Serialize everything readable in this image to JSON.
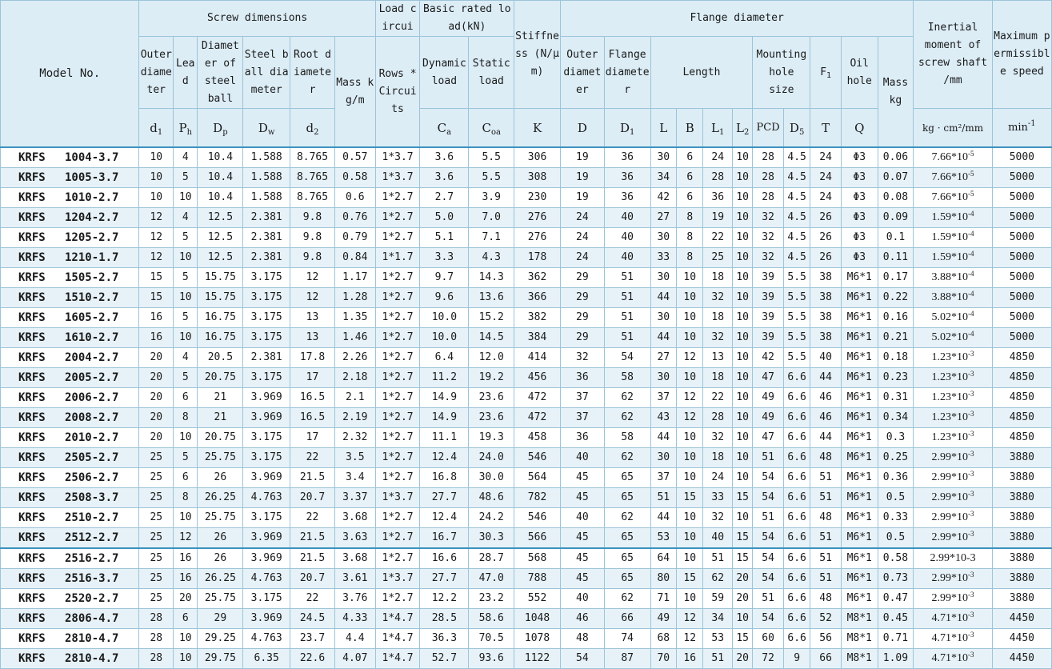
{
  "header": {
    "model": "Model No.",
    "screw_dimensions": "Screw dimensions",
    "load_circuit": "Load circui",
    "basic_rated_load": "Basic rated load(kN)",
    "stiffness": "Stiffness (N/μm)",
    "flange_diameter": "Flange diameter",
    "inertial_moment": "Inertial moment of screw shaft /mm",
    "max_speed": "Maximum permissible speed",
    "outer_diameter": "Outer diameter",
    "lead": "Lead",
    "diameter_steel_ball": "Diameter of steel ball",
    "steel_ball_diameter": "Steel ball diameter",
    "root_diameter": "Root diameter",
    "mass_kg_m": "Mass kg/m",
    "rows_circuits": "Rows * Circuits",
    "dynamic_load": "Dynamic load",
    "static_load": "Static load",
    "flange_outer_diameter": "Outer diameter",
    "flange_diameter_sub": "Flange diameter",
    "length": "Length",
    "mounting_hole_size": "Mounting hole size",
    "f1_base": "F",
    "f1_sub": "1",
    "oil_hole": "Oil hole",
    "mass_kg": "Mass kg",
    "sym_d1_base": "d",
    "sym_d1_sub": "1",
    "sym_ph_base": "P",
    "sym_ph_sub": "h",
    "sym_dp_base": "D",
    "sym_dp_sub": "p",
    "sym_dw_base": "D",
    "sym_dw_sub": "w",
    "sym_d2_base": "d",
    "sym_d2_sub": "2",
    "sym_ca_base": "C",
    "sym_ca_sub": "a",
    "sym_coa_base": "C",
    "sym_coa_sub": "oa",
    "sym_k": "K",
    "sym_D": "D",
    "sym_D1_base": "D",
    "sym_D1_sub": "1",
    "sym_L": "L",
    "sym_B": "B",
    "sym_L1_base": "L",
    "sym_L1_sub": "1",
    "sym_L2_base": "L",
    "sym_L2_sub": "2",
    "sym_pcd": "PCD",
    "sym_D5_base": "D",
    "sym_D5_sub": "5",
    "sym_T": "T",
    "sym_Q": "Q",
    "unit_inertia": "kg · cm²/mm",
    "unit_speed_base": "min",
    "unit_speed_sup": "-1"
  },
  "rows": [
    {
      "series": "KRFS",
      "model": "1004-3.7",
      "d1": "10",
      "ph": "4",
      "dp": "10.4",
      "dw": "1.588",
      "d2": "8.765",
      "mass_m": "0.57",
      "rc": "1*3.7",
      "ca": "3.6",
      "coa": "5.5",
      "k": "306",
      "D": "19",
      "D1": "36",
      "L": "30",
      "B": "6",
      "L1": "24",
      "L2": "10",
      "pcd": "28",
      "D5": "4.5",
      "T": "24",
      "Q": "Φ3",
      "mass": "0.06",
      "inertia_base": "7.66*10",
      "inertia_exp": "-5",
      "speed": "5000"
    },
    {
      "series": "KRFS",
      "model": "1005-3.7",
      "d1": "10",
      "ph": "5",
      "dp": "10.4",
      "dw": "1.588",
      "d2": "8.765",
      "mass_m": "0.58",
      "rc": "1*3.7",
      "ca": "3.6",
      "coa": "5.5",
      "k": "308",
      "D": "19",
      "D1": "36",
      "L": "34",
      "B": "6",
      "L1": "28",
      "L2": "10",
      "pcd": "28",
      "D5": "4.5",
      "T": "24",
      "Q": "Φ3",
      "mass": "0.07",
      "inertia_base": "7.66*10",
      "inertia_exp": "-5",
      "speed": "5000"
    },
    {
      "series": "KRFS",
      "model": "1010-2.7",
      "d1": "10",
      "ph": "10",
      "dp": "10.4",
      "dw": "1.588",
      "d2": "8.765",
      "mass_m": "0.6",
      "rc": "1*2.7",
      "ca": "2.7",
      "coa": "3.9",
      "k": "230",
      "D": "19",
      "D1": "36",
      "L": "42",
      "B": "6",
      "L1": "36",
      "L2": "10",
      "pcd": "28",
      "D5": "4.5",
      "T": "24",
      "Q": "Φ3",
      "mass": "0.08",
      "inertia_base": "7.66*10",
      "inertia_exp": "-5",
      "speed": "5000"
    },
    {
      "series": "KRFS",
      "model": "1204-2.7",
      "d1": "12",
      "ph": "4",
      "dp": "12.5",
      "dw": "2.381",
      "d2": "9.8",
      "mass_m": "0.76",
      "rc": "1*2.7",
      "ca": "5.0",
      "coa": "7.0",
      "k": "276",
      "D": "24",
      "D1": "40",
      "L": "27",
      "B": "8",
      "L1": "19",
      "L2": "10",
      "pcd": "32",
      "D5": "4.5",
      "T": "26",
      "Q": "Φ3",
      "mass": "0.09",
      "inertia_base": "1.59*10",
      "inertia_exp": "-4",
      "speed": "5000"
    },
    {
      "series": "KRFS",
      "model": "1205-2.7",
      "d1": "12",
      "ph": "5",
      "dp": "12.5",
      "dw": "2.381",
      "d2": "9.8",
      "mass_m": "0.79",
      "rc": "1*2.7",
      "ca": "5.1",
      "coa": "7.1",
      "k": "276",
      "D": "24",
      "D1": "40",
      "L": "30",
      "B": "8",
      "L1": "22",
      "L2": "10",
      "pcd": "32",
      "D5": "4.5",
      "T": "26",
      "Q": "Φ3",
      "mass": "0.1",
      "inertia_base": "1.59*10",
      "inertia_exp": "-4",
      "speed": "5000"
    },
    {
      "series": "KRFS",
      "model": "1210-1.7",
      "d1": "12",
      "ph": "10",
      "dp": "12.5",
      "dw": "2.381",
      "d2": "9.8",
      "mass_m": "0.84",
      "rc": "1*1.7",
      "ca": "3.3",
      "coa": "4.3",
      "k": "178",
      "D": "24",
      "D1": "40",
      "L": "33",
      "B": "8",
      "L1": "25",
      "L2": "10",
      "pcd": "32",
      "D5": "4.5",
      "T": "26",
      "Q": "Φ3",
      "mass": "0.11",
      "inertia_base": "1.59*10",
      "inertia_exp": "-4",
      "speed": "5000"
    },
    {
      "series": "KRFS",
      "model": "1505-2.7",
      "d1": "15",
      "ph": "5",
      "dp": "15.75",
      "dw": "3.175",
      "d2": "12",
      "mass_m": "1.17",
      "rc": "1*2.7",
      "ca": "9.7",
      "coa": "14.3",
      "k": "362",
      "D": "29",
      "D1": "51",
      "L": "30",
      "B": "10",
      "L1": "18",
      "L2": "10",
      "pcd": "39",
      "D5": "5.5",
      "T": "38",
      "Q": "M6*1",
      "mass": "0.17",
      "inertia_base": "3.88*10",
      "inertia_exp": "-4",
      "speed": "5000"
    },
    {
      "series": "KRFS",
      "model": "1510-2.7",
      "d1": "15",
      "ph": "10",
      "dp": "15.75",
      "dw": "3.175",
      "d2": "12",
      "mass_m": "1.28",
      "rc": "1*2.7",
      "ca": "9.6",
      "coa": "13.6",
      "k": "366",
      "D": "29",
      "D1": "51",
      "L": "44",
      "B": "10",
      "L1": "32",
      "L2": "10",
      "pcd": "39",
      "D5": "5.5",
      "T": "38",
      "Q": "M6*1",
      "mass": "0.22",
      "inertia_base": "3.88*10",
      "inertia_exp": "-4",
      "speed": "5000"
    },
    {
      "series": "KRFS",
      "model": "1605-2.7",
      "d1": "16",
      "ph": "5",
      "dp": "16.75",
      "dw": "3.175",
      "d2": "13",
      "mass_m": "1.35",
      "rc": "1*2.7",
      "ca": "10.0",
      "coa": "15.2",
      "k": "382",
      "D": "29",
      "D1": "51",
      "L": "30",
      "B": "10",
      "L1": "18",
      "L2": "10",
      "pcd": "39",
      "D5": "5.5",
      "T": "38",
      "Q": "M6*1",
      "mass": "0.16",
      "inertia_base": "5.02*10",
      "inertia_exp": "-4",
      "speed": "5000"
    },
    {
      "series": "KRFS",
      "model": "1610-2.7",
      "d1": "16",
      "ph": "10",
      "dp": "16.75",
      "dw": "3.175",
      "d2": "13",
      "mass_m": "1.46",
      "rc": "1*2.7",
      "ca": "10.0",
      "coa": "14.5",
      "k": "384",
      "D": "29",
      "D1": "51",
      "L": "44",
      "B": "10",
      "L1": "32",
      "L2": "10",
      "pcd": "39",
      "D5": "5.5",
      "T": "38",
      "Q": "M6*1",
      "mass": "0.21",
      "inertia_base": "5.02*10",
      "inertia_exp": "-4",
      "speed": "5000"
    },
    {
      "series": "KRFS",
      "model": "2004-2.7",
      "d1": "20",
      "ph": "4",
      "dp": "20.5",
      "dw": "2.381",
      "d2": "17.8",
      "mass_m": "2.26",
      "rc": "1*2.7",
      "ca": "6.4",
      "coa": "12.0",
      "k": "414",
      "D": "32",
      "D1": "54",
      "L": "27",
      "B": "12",
      "L1": "13",
      "L2": "10",
      "pcd": "42",
      "D5": "5.5",
      "T": "40",
      "Q": "M6*1",
      "mass": "0.18",
      "inertia_base": "1.23*10",
      "inertia_exp": "-3",
      "speed": "4850"
    },
    {
      "series": "KRFS",
      "model": "2005-2.7",
      "d1": "20",
      "ph": "5",
      "dp": "20.75",
      "dw": "3.175",
      "d2": "17",
      "mass_m": "2.18",
      "rc": "1*2.7",
      "ca": "11.2",
      "coa": "19.2",
      "k": "456",
      "D": "36",
      "D1": "58",
      "L": "30",
      "B": "10",
      "L1": "18",
      "L2": "10",
      "pcd": "47",
      "D5": "6.6",
      "T": "44",
      "Q": "M6*1",
      "mass": "0.23",
      "inertia_base": "1.23*10",
      "inertia_exp": "-3",
      "speed": "4850"
    },
    {
      "series": "KRFS",
      "model": "2006-2.7",
      "d1": "20",
      "ph": "6",
      "dp": "21",
      "dw": "3.969",
      "d2": "16.5",
      "mass_m": "2.1",
      "rc": "1*2.7",
      "ca": "14.9",
      "coa": "23.6",
      "k": "472",
      "D": "37",
      "D1": "62",
      "L": "37",
      "B": "12",
      "L1": "22",
      "L2": "10",
      "pcd": "49",
      "D5": "6.6",
      "T": "46",
      "Q": "M6*1",
      "mass": "0.31",
      "inertia_base": "1.23*10",
      "inertia_exp": "-3",
      "speed": "4850"
    },
    {
      "series": "KRFS",
      "model": "2008-2.7",
      "d1": "20",
      "ph": "8",
      "dp": "21",
      "dw": "3.969",
      "d2": "16.5",
      "mass_m": "2.19",
      "rc": "1*2.7",
      "ca": "14.9",
      "coa": "23.6",
      "k": "472",
      "D": "37",
      "D1": "62",
      "L": "43",
      "B": "12",
      "L1": "28",
      "L2": "10",
      "pcd": "49",
      "D5": "6.6",
      "T": "46",
      "Q": "M6*1",
      "mass": "0.34",
      "inertia_base": "1.23*10",
      "inertia_exp": "-3",
      "speed": "4850"
    },
    {
      "series": "KRFS",
      "model": "2010-2.7",
      "d1": "20",
      "ph": "10",
      "dp": "20.75",
      "dw": "3.175",
      "d2": "17",
      "mass_m": "2.32",
      "rc": "1*2.7",
      "ca": "11.1",
      "coa": "19.3",
      "k": "458",
      "D": "36",
      "D1": "58",
      "L": "44",
      "B": "10",
      "L1": "32",
      "L2": "10",
      "pcd": "47",
      "D5": "6.6",
      "T": "44",
      "Q": "M6*1",
      "mass": "0.3",
      "inertia_base": "1.23*10",
      "inertia_exp": "-3",
      "speed": "4850"
    },
    {
      "series": "KRFS",
      "model": "2505-2.7",
      "d1": "25",
      "ph": "5",
      "dp": "25.75",
      "dw": "3.175",
      "d2": "22",
      "mass_m": "3.5",
      "rc": "1*2.7",
      "ca": "12.4",
      "coa": "24.0",
      "k": "546",
      "D": "40",
      "D1": "62",
      "L": "30",
      "B": "10",
      "L1": "18",
      "L2": "10",
      "pcd": "51",
      "D5": "6.6",
      "T": "48",
      "Q": "M6*1",
      "mass": "0.25",
      "inertia_base": "2.99*10",
      "inertia_exp": "-3",
      "speed": "3880"
    },
    {
      "series": "KRFS",
      "model": "2506-2.7",
      "d1": "25",
      "ph": "6",
      "dp": "26",
      "dw": "3.969",
      "d2": "21.5",
      "mass_m": "3.4",
      "rc": "1*2.7",
      "ca": "16.8",
      "coa": "30.0",
      "k": "564",
      "D": "45",
      "D1": "65",
      "L": "37",
      "B": "10",
      "L1": "24",
      "L2": "10",
      "pcd": "54",
      "D5": "6.6",
      "T": "51",
      "Q": "M6*1",
      "mass": "0.36",
      "inertia_base": "2.99*10",
      "inertia_exp": "-3",
      "speed": "3880"
    },
    {
      "series": "KRFS",
      "model": "2508-3.7",
      "d1": "25",
      "ph": "8",
      "dp": "26.25",
      "dw": "4.763",
      "d2": "20.7",
      "mass_m": "3.37",
      "rc": "1*3.7",
      "ca": "27.7",
      "coa": "48.6",
      "k": "782",
      "D": "45",
      "D1": "65",
      "L": "51",
      "B": "15",
      "L1": "33",
      "L2": "15",
      "pcd": "54",
      "D5": "6.6",
      "T": "51",
      "Q": "M6*1",
      "mass": "0.5",
      "inertia_base": "2.99*10",
      "inertia_exp": "-3",
      "speed": "3880"
    },
    {
      "series": "KRFS",
      "model": "2510-2.7",
      "d1": "25",
      "ph": "10",
      "dp": "25.75",
      "dw": "3.175",
      "d2": "22",
      "mass_m": "3.68",
      "rc": "1*2.7",
      "ca": "12.4",
      "coa": "24.2",
      "k": "546",
      "D": "40",
      "D1": "62",
      "L": "44",
      "B": "10",
      "L1": "32",
      "L2": "10",
      "pcd": "51",
      "D5": "6.6",
      "T": "48",
      "Q": "M6*1",
      "mass": "0.33",
      "inertia_base": "2.99*10",
      "inertia_exp": "-3",
      "speed": "3880"
    },
    {
      "series": "KRFS",
      "model": "2512-2.7",
      "d1": "25",
      "ph": "12",
      "dp": "26",
      "dw": "3.969",
      "d2": "21.5",
      "mass_m": "3.63",
      "rc": "1*2.7",
      "ca": "16.7",
      "coa": "30.3",
      "k": "566",
      "D": "45",
      "D1": "65",
      "L": "53",
      "B": "10",
      "L1": "40",
      "L2": "15",
      "pcd": "54",
      "D5": "6.6",
      "T": "51",
      "Q": "M6*1",
      "mass": "0.5",
      "inertia_base": "2.99*10",
      "inertia_exp": "-3",
      "speed": "3880"
    },
    {
      "series": "KRFS",
      "model": "2516-2.7",
      "d1": "25",
      "ph": "16",
      "dp": "26",
      "dw": "3.969",
      "d2": "21.5",
      "mass_m": "3.68",
      "rc": "1*2.7",
      "ca": "16.6",
      "coa": "28.7",
      "k": "568",
      "D": "45",
      "D1": "65",
      "L": "64",
      "B": "10",
      "L1": "51",
      "L2": "15",
      "pcd": "54",
      "D5": "6.6",
      "T": "51",
      "Q": "M6*1",
      "mass": "0.58",
      "inertia_base": "2.99*10-3",
      "inertia_exp": "",
      "speed": "3880"
    },
    {
      "series": "KRFS",
      "model": "2516-3.7",
      "d1": "25",
      "ph": "16",
      "dp": "26.25",
      "dw": "4.763",
      "d2": "20.7",
      "mass_m": "3.61",
      "rc": "1*3.7",
      "ca": "27.7",
      "coa": "47.0",
      "k": "788",
      "D": "45",
      "D1": "65",
      "L": "80",
      "B": "15",
      "L1": "62",
      "L2": "20",
      "pcd": "54",
      "D5": "6.6",
      "T": "51",
      "Q": "M6*1",
      "mass": "0.73",
      "inertia_base": "2.99*10",
      "inertia_exp": "-3",
      "speed": "3880"
    },
    {
      "series": "KRFS",
      "model": "2520-2.7",
      "d1": "25",
      "ph": "20",
      "dp": "25.75",
      "dw": "3.175",
      "d2": "22",
      "mass_m": "3.76",
      "rc": "1*2.7",
      "ca": "12.2",
      "coa": "23.2",
      "k": "552",
      "D": "40",
      "D1": "62",
      "L": "71",
      "B": "10",
      "L1": "59",
      "L2": "20",
      "pcd": "51",
      "D5": "6.6",
      "T": "48",
      "Q": "M6*1",
      "mass": "0.47",
      "inertia_base": "2.99*10",
      "inertia_exp": "-3",
      "speed": "3880"
    },
    {
      "series": "KRFS",
      "model": "2806-4.7",
      "d1": "28",
      "ph": "6",
      "dp": "29",
      "dw": "3.969",
      "d2": "24.5",
      "mass_m": "4.33",
      "rc": "1*4.7",
      "ca": "28.5",
      "coa": "58.6",
      "k": "1048",
      "D": "46",
      "D1": "66",
      "L": "49",
      "B": "12",
      "L1": "34",
      "L2": "10",
      "pcd": "54",
      "D5": "6.6",
      "T": "52",
      "Q": "M8*1",
      "mass": "0.45",
      "inertia_base": "4.71*10",
      "inertia_exp": "-3",
      "speed": "4450"
    },
    {
      "series": "KRFS",
      "model": "2810-4.7",
      "d1": "28",
      "ph": "10",
      "dp": "29.25",
      "dw": "4.763",
      "d2": "23.7",
      "mass_m": "4.4",
      "rc": "1*4.7",
      "ca": "36.3",
      "coa": "70.5",
      "k": "1078",
      "D": "48",
      "D1": "74",
      "L": "68",
      "B": "12",
      "L1": "53",
      "L2": "15",
      "pcd": "60",
      "D5": "6.6",
      "T": "56",
      "Q": "M8*1",
      "mass": "0.71",
      "inertia_base": "4.71*10",
      "inertia_exp": "-3",
      "speed": "4450"
    },
    {
      "series": "KRFS",
      "model": "2810-4.7",
      "d1": "28",
      "ph": "10",
      "dp": "29.75",
      "dw": "6.35",
      "d2": "22.6",
      "mass_m": "4.07",
      "rc": "1*4.7",
      "ca": "52.7",
      "coa": "93.6",
      "k": "1122",
      "D": "54",
      "D1": "87",
      "L": "70",
      "B": "16",
      "L1": "51",
      "L2": "20",
      "pcd": "72",
      "D5": "9",
      "T": "66",
      "Q": "M8*1",
      "mass": "1.09",
      "inertia_base": "4.71*10",
      "inertia_exp": "-3",
      "speed": "4450"
    }
  ]
}
